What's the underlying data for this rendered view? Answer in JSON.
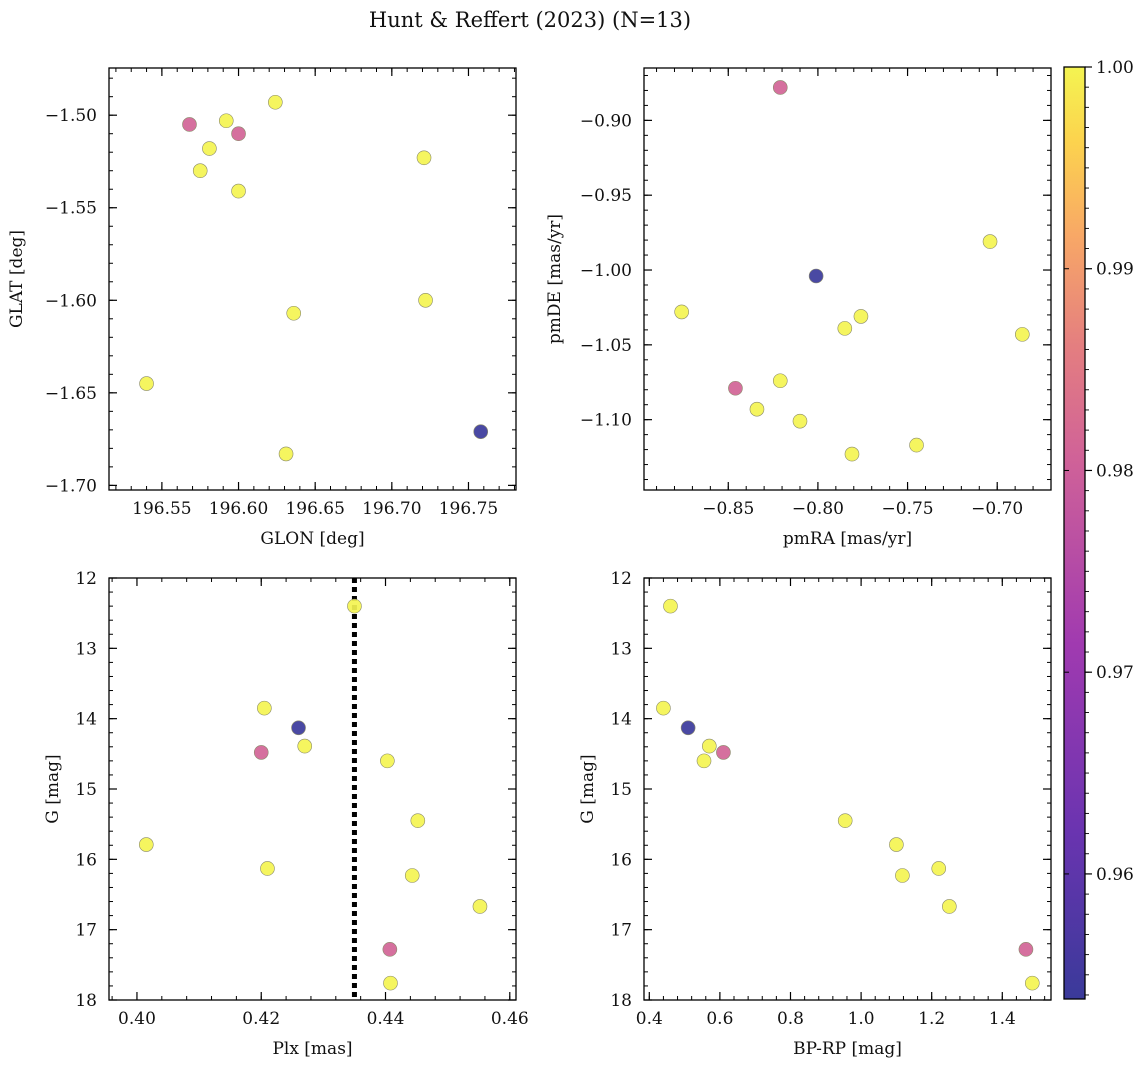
{
  "figure": {
    "title": "Hunt & Reffert (2023) (N=13)"
  },
  "colorbar": {
    "colormap": "plasma",
    "range": [
      0.9538,
      1.0
    ],
    "ticks": [
      0.96,
      0.97,
      0.98,
      0.99,
      1.0
    ],
    "tick_labels": [
      "0.96",
      "0.97",
      "0.98",
      "0.99",
      "1.00"
    ],
    "colors": {
      "low": "#3a3a9a",
      "mid": "#d97a80",
      "high": "#f4f451"
    }
  },
  "chart_data": [
    {
      "id": "pos",
      "type": "scatter",
      "xlabel": "GLON [deg]",
      "ylabel": "GLAT [deg]",
      "xlim": [
        196.5155,
        196.781
      ],
      "ylim": [
        -1.7025,
        -1.4745
      ],
      "invert_y": false,
      "xticks": [
        196.55,
        196.6,
        196.65,
        196.7,
        196.75
      ],
      "xtick_labels": [
        "196.55",
        "196.60",
        "196.65",
        "196.70",
        "196.75"
      ],
      "yticks": [
        -1.5,
        -1.55,
        -1.6,
        -1.65,
        -1.7
      ],
      "ytick_labels": [
        "−1.50",
        "−1.55",
        "−1.60",
        "−1.65",
        "−1.70"
      ],
      "x": [
        196.568,
        196.592,
        196.581,
        196.6,
        196.575,
        196.624,
        196.6,
        196.721,
        196.54,
        196.636,
        196.722,
        196.631,
        196.758
      ],
      "y": [
        -1.505,
        -1.503,
        -1.518,
        -1.51,
        -1.53,
        -1.493,
        -1.541,
        -1.523,
        -1.645,
        -1.607,
        -1.6,
        -1.683,
        -1.671
      ],
      "prob": [
        0.981,
        1.0,
        1.0,
        0.981,
        1.0,
        1.0,
        1.0,
        1.0,
        1.0,
        1.0,
        1.0,
        1.0,
        0.954
      ]
    },
    {
      "id": "pm",
      "type": "scatter",
      "xlabel": "pmRA [mas/yr]",
      "ylabel": "pmDE [mas/yr]",
      "xlim": [
        -0.897,
        -0.67
      ],
      "ylim": [
        -1.147,
        -0.865
      ],
      "invert_y": false,
      "xticks": [
        -0.85,
        -0.8,
        -0.75,
        -0.7
      ],
      "xtick_labels": [
        "−0.85",
        "−0.80",
        "−0.75",
        "−0.70"
      ],
      "yticks": [
        -0.9,
        -0.95,
        -1.0,
        -1.05,
        -1.1
      ],
      "ytick_labels": [
        "−0.90",
        "−0.95",
        "−1.00",
        "−1.05",
        "−1.10"
      ],
      "x": [
        -0.821,
        -0.704,
        -0.801,
        -0.876,
        -0.785,
        -0.776,
        -0.686,
        -0.846,
        -0.821,
        -0.834,
        -0.81,
        -0.745,
        -0.781
      ],
      "y": [
        -0.878,
        -0.981,
        -1.004,
        -1.028,
        -1.039,
        -1.031,
        -1.043,
        -1.079,
        -1.074,
        -1.093,
        -1.101,
        -1.117,
        -1.123
      ],
      "prob": [
        0.981,
        1.0,
        0.954,
        1.0,
        1.0,
        1.0,
        1.0,
        0.981,
        1.0,
        1.0,
        1.0,
        1.0,
        1.0
      ]
    },
    {
      "id": "plx",
      "type": "scatter",
      "xlabel": "Plx [mas]",
      "ylabel": "G [mag]",
      "xlim": [
        0.3955,
        0.461
      ],
      "ylim": [
        12.0,
        18.0
      ],
      "invert_y": true,
      "xticks": [
        0.4,
        0.42,
        0.44,
        0.46
      ],
      "xtick_labels": [
        "0.40",
        "0.42",
        "0.44",
        "0.46"
      ],
      "yticks": [
        12,
        13,
        14,
        15,
        16,
        17,
        18
      ],
      "ytick_labels": [
        "12",
        "13",
        "14",
        "15",
        "16",
        "17",
        "18"
      ],
      "vline": 0.435,
      "x": [
        0.435,
        0.4205,
        0.426,
        0.427,
        0.42,
        0.4403,
        0.4452,
        0.4015,
        0.421,
        0.4443,
        0.4552,
        0.4407,
        0.4408
      ],
      "y": [
        12.4,
        13.85,
        14.13,
        14.39,
        14.48,
        14.6,
        15.45,
        15.79,
        16.13,
        16.23,
        16.67,
        17.28,
        17.76
      ],
      "prob": [
        1.0,
        1.0,
        0.954,
        1.0,
        0.981,
        1.0,
        1.0,
        1.0,
        1.0,
        1.0,
        1.0,
        0.981,
        1.0
      ]
    },
    {
      "id": "cmd",
      "type": "scatter",
      "xlabel": "BP-RP [mag]",
      "ylabel": "G [mag]",
      "xlim": [
        0.385,
        1.538
      ],
      "ylim": [
        12.0,
        18.0
      ],
      "invert_y": true,
      "xticks": [
        0.4,
        0.6,
        0.8,
        1.0,
        1.2,
        1.4
      ],
      "xtick_labels": [
        "0.4",
        "0.6",
        "0.8",
        "1.0",
        "1.2",
        "1.4"
      ],
      "yticks": [
        12,
        13,
        14,
        15,
        16,
        17,
        18
      ],
      "ytick_labels": [
        "12",
        "13",
        "14",
        "15",
        "16",
        "17",
        "18"
      ],
      "x": [
        0.46,
        0.44,
        0.51,
        0.57,
        0.61,
        0.555,
        0.955,
        1.1,
        1.22,
        1.117,
        1.25,
        1.467,
        1.485
      ],
      "y": [
        12.4,
        13.85,
        14.13,
        14.39,
        14.48,
        14.6,
        15.45,
        15.79,
        16.13,
        16.23,
        16.67,
        17.28,
        17.76
      ],
      "prob": [
        1.0,
        1.0,
        0.954,
        1.0,
        0.981,
        1.0,
        1.0,
        1.0,
        1.0,
        1.0,
        1.0,
        0.981,
        1.0
      ]
    }
  ]
}
